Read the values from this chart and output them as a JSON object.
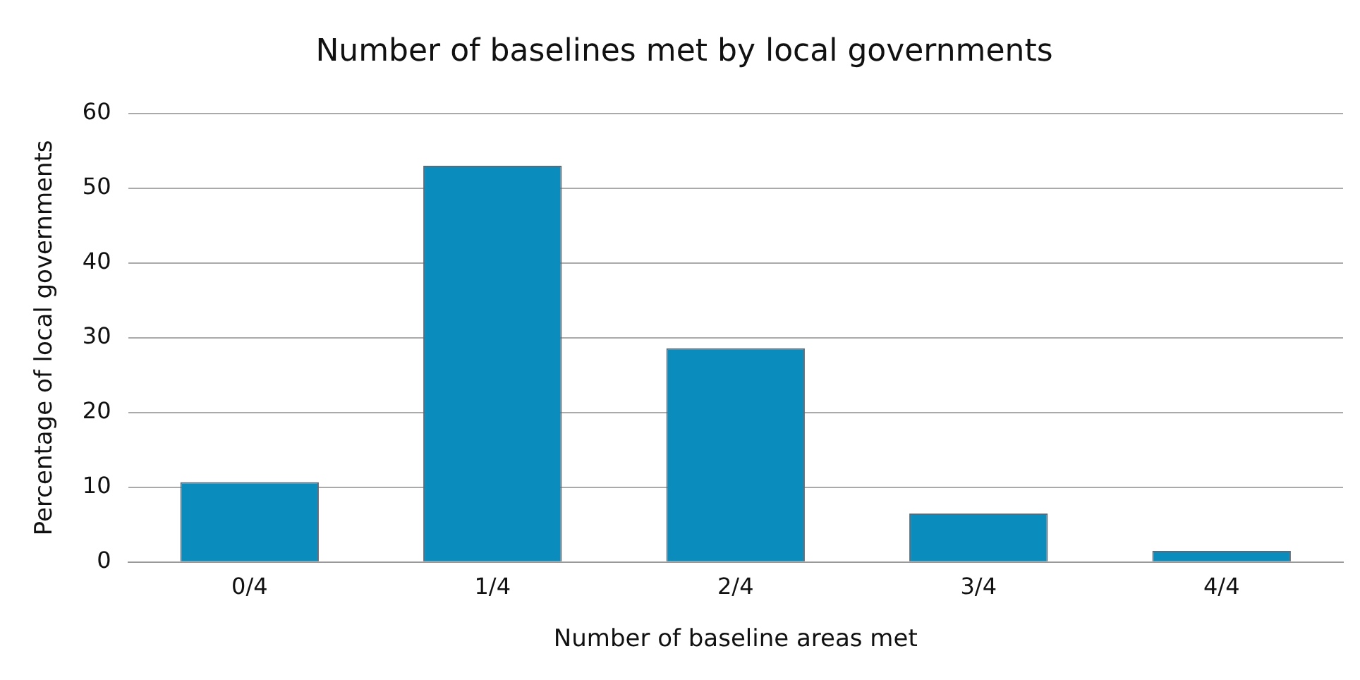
{
  "chart_data": {
    "type": "bar",
    "title": "Number of baselines met by local governments",
    "xlabel": "Number of baseline areas met",
    "ylabel": "Percentage of local governments",
    "categories": [
      "0/4",
      "1/4",
      "2/4",
      "3/4",
      "4/4"
    ],
    "values": [
      10.7,
      53,
      28.6,
      6.5,
      1.5
    ],
    "color": "#0a8cbc",
    "ylim": [
      0,
      60
    ],
    "yticks": [
      0,
      10,
      20,
      30,
      40,
      50,
      60
    ],
    "grid": "y"
  }
}
